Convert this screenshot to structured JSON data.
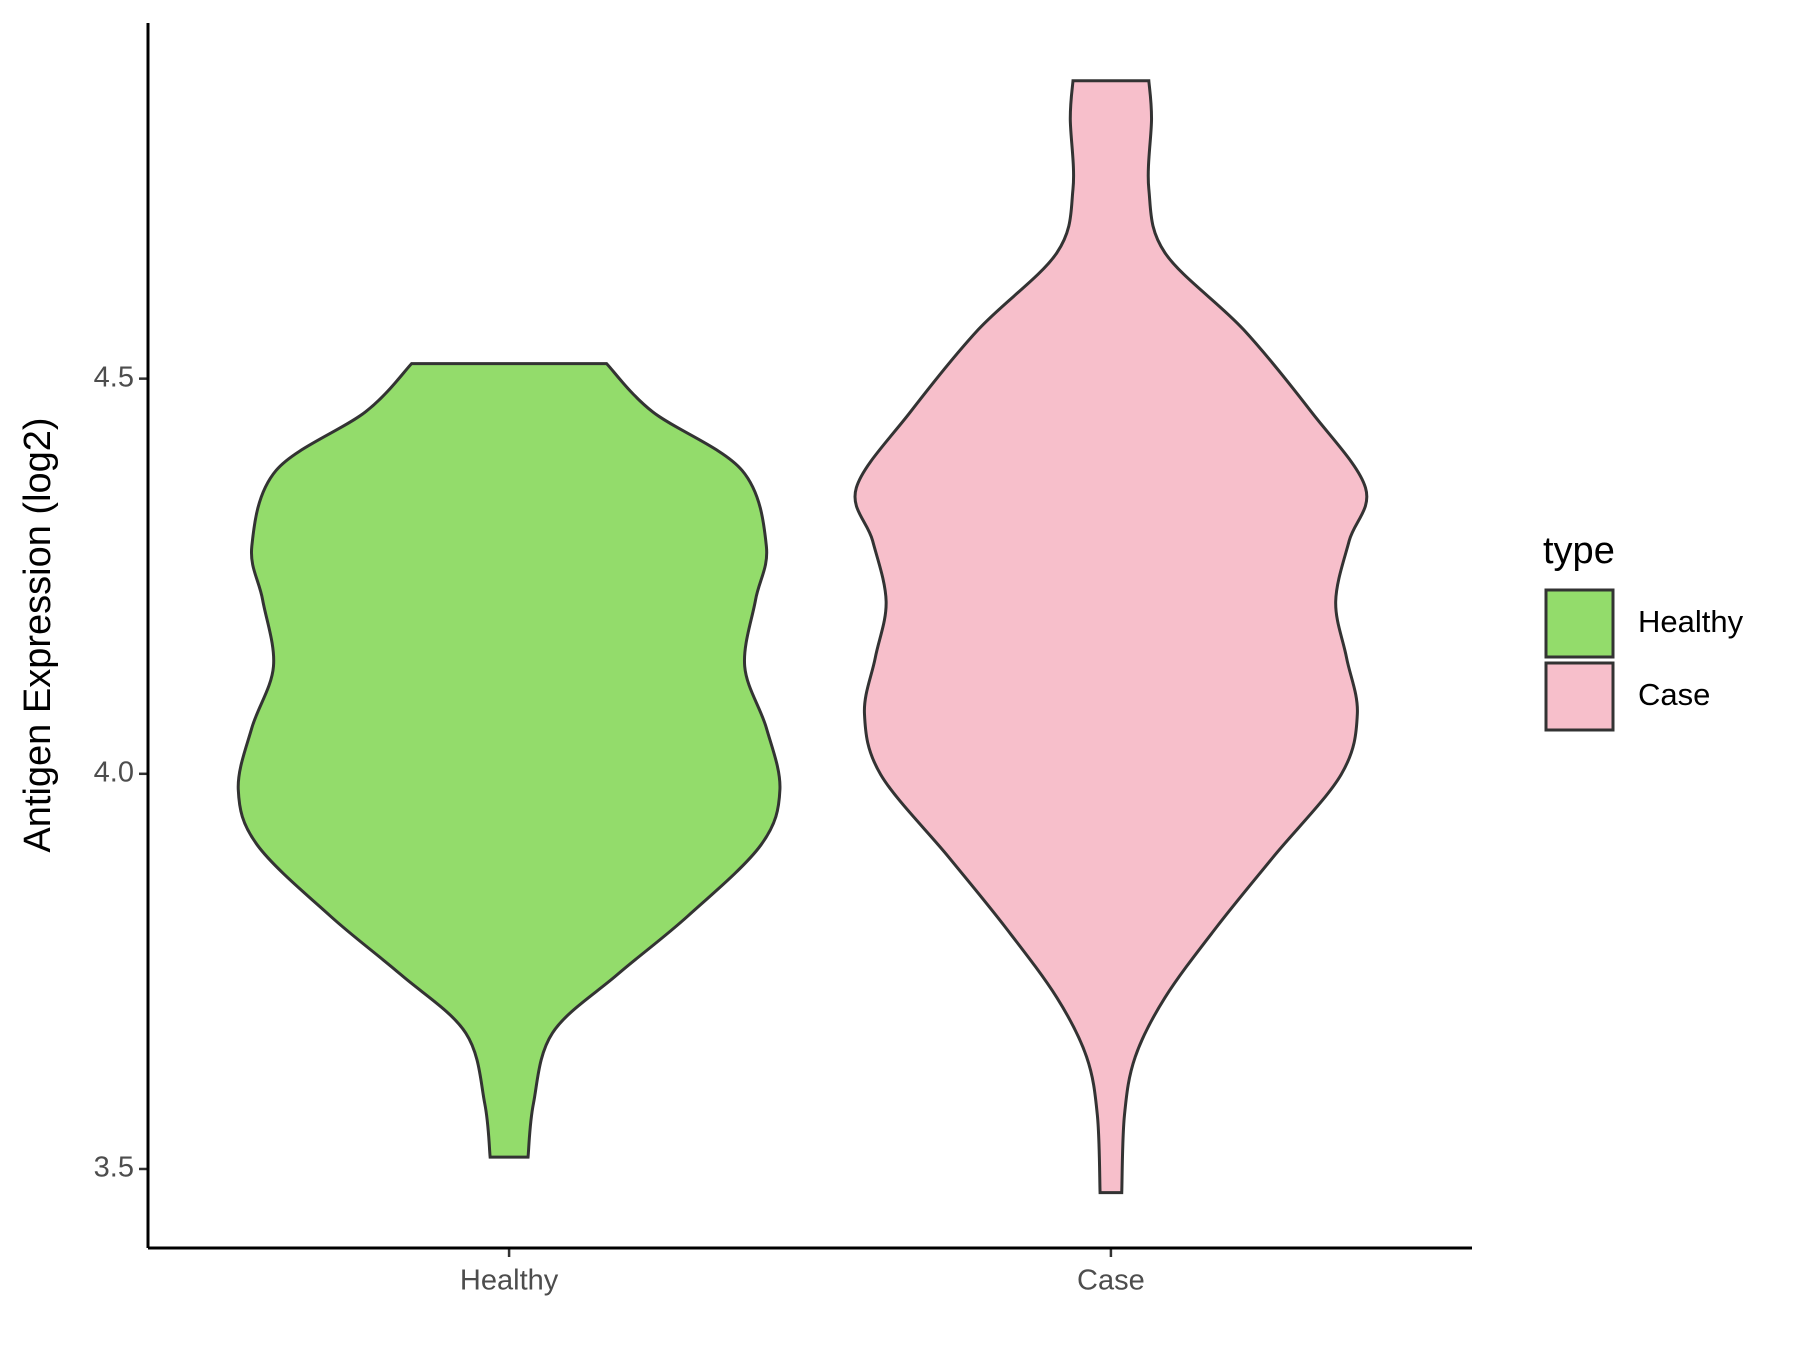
{
  "chart_data": {
    "type": "violin",
    "y_label": "Antigen Expression (log2)",
    "categories": [
      "Healthy",
      "Case"
    ],
    "ylim": [
      3.4,
      4.95
    ],
    "yticks": [
      {
        "value": 3.5,
        "label": "3.5"
      },
      {
        "value": 4.0,
        "label": "4.0"
      },
      {
        "value": 4.5,
        "label": "4.5"
      }
    ],
    "legend_title": "type",
    "legend_position": "right",
    "series": [
      {
        "name": "Healthy",
        "color": "#93DC6B",
        "y": [
          3.515,
          3.583,
          3.672,
          3.746,
          3.82,
          3.91,
          3.98,
          4.058,
          4.136,
          4.22,
          4.288,
          4.384,
          4.458,
          4.519
        ],
        "density": [
          0.07,
          0.09,
          0.16,
          0.4,
          0.66,
          0.93,
          1,
          0.95,
          0.87,
          0.91,
          0.95,
          0.86,
          0.53,
          0.36
        ]
      },
      {
        "name": "Case",
        "color": "#F7BFCB",
        "y": [
          3.47,
          3.568,
          3.642,
          3.717,
          3.806,
          3.895,
          3.999,
          4.076,
          4.147,
          4.218,
          4.295,
          4.362,
          4.458,
          4.562,
          4.659,
          4.74,
          4.829,
          4.877
        ],
        "density": [
          0.04,
          0.05,
          0.09,
          0.2,
          0.39,
          0.6,
          0.85,
          0.91,
          0.87,
          0.83,
          0.88,
          0.94,
          0.74,
          0.49,
          0.2,
          0.14,
          0.15,
          0.14
        ]
      }
    ]
  }
}
